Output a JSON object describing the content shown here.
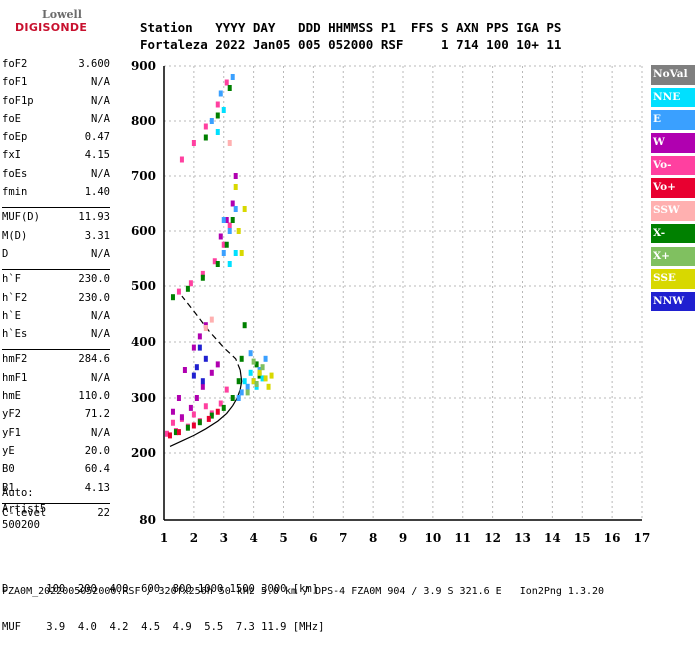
{
  "logo": {
    "line1": "Lowell",
    "line2": "DIGISONDE"
  },
  "header": {
    "line1": "Station   YYYY DAY   DDD HHMMSS P1  FFS S AXN PPS IGA PS",
    "line2": "Fortaleza 2022 Jan05 005 052000 RSF     1 714 100 10+ 11"
  },
  "params": {
    "group1": [
      {
        "label": "foF2",
        "value": "3.600"
      },
      {
        "label": "foF1",
        "value": "N/A"
      },
      {
        "label": "foF1p",
        "value": "N/A"
      },
      {
        "label": "foE",
        "value": "N/A"
      },
      {
        "label": "foEp",
        "value": "0.47"
      },
      {
        "label": "fxI",
        "value": "4.15"
      },
      {
        "label": "foEs",
        "value": "N/A"
      },
      {
        "label": "fmin",
        "value": "1.40"
      }
    ],
    "group2": [
      {
        "label": "MUF(D)",
        "value": "11.93"
      },
      {
        "label": "M(D)",
        "value": "3.31"
      },
      {
        "label": "D",
        "value": "N/A"
      }
    ],
    "group3": [
      {
        "label": "h`F",
        "value": "230.0"
      },
      {
        "label": "h`F2",
        "value": "230.0"
      },
      {
        "label": "h`E",
        "value": "N/A"
      },
      {
        "label": "h`Es",
        "value": "N/A"
      }
    ],
    "group4": [
      {
        "label": "hmF2",
        "value": "284.6"
      },
      {
        "label": "hmF1",
        "value": "N/A"
      },
      {
        "label": "hmE",
        "value": "110.0"
      },
      {
        "label": "yF2",
        "value": "71.2"
      },
      {
        "label": "yF1",
        "value": "N/A"
      },
      {
        "label": "yE",
        "value": "20.0"
      },
      {
        "label": "B0",
        "value": "60.4"
      },
      {
        "label": "B1",
        "value": "4.13"
      }
    ],
    "group5": [
      {
        "label": "C-level",
        "value": "22"
      }
    ]
  },
  "auto": {
    "line1": "Auto:",
    "line2": "Artist5",
    "line3": "500200"
  },
  "legend": [
    {
      "label": "NoVal",
      "color": "#7f7f7f"
    },
    {
      "label": "NNE",
      "color": "#00e0ff"
    },
    {
      "label": "E",
      "color": "#3aa0ff"
    },
    {
      "label": "W",
      "color": "#b000b0"
    },
    {
      "label": "Vo-",
      "color": "#ff40a0"
    },
    {
      "label": "Vo+",
      "color": "#e80030"
    },
    {
      "label": "SSW",
      "color": "#ffb0b0"
    },
    {
      "label": "X-",
      "color": "#008000"
    },
    {
      "label": "X+",
      "color": "#80c060"
    },
    {
      "label": "SSE",
      "color": "#d8d800"
    },
    {
      "label": "NNW",
      "color": "#2020d0"
    }
  ],
  "bottom": {
    "line1": "D      100  200  400  600  800 1000 1500 3000 [km]",
    "line2": "MUF    3.9  4.0  4.2  4.5  4.9  5.5  7.3 11.9 [MHz]"
  },
  "footer": "FZA0M_2022005052000.RSF / 320fx256h 50 kHz 5.0 km / DPS-4 FZA0M 904 / 3.9 S 321.6 E   Ion2Png 1.3.20",
  "chart_data": {
    "type": "scatter",
    "xlabel": "",
    "ylabel": "",
    "xlim": [
      1,
      17
    ],
    "ylim": [
      80,
      900
    ],
    "xticks": [
      "1",
      "2",
      "3",
      "4",
      "5",
      "6",
      "7",
      "8",
      "9",
      "10",
      "11",
      "12",
      "13",
      "14",
      "15",
      "16",
      "17"
    ],
    "yticks": [
      "80",
      "200",
      "300",
      "400",
      "500",
      "600",
      "700",
      "800",
      "900"
    ],
    "grid": true,
    "series": [
      {
        "name": "Vo-",
        "color": "#ff40a0",
        "points": [
          [
            1.1,
            235
          ],
          [
            1.4,
            240
          ],
          [
            1.8,
            248
          ],
          [
            2.2,
            258
          ],
          [
            2.6,
            272
          ],
          [
            2.9,
            290
          ],
          [
            3.1,
            315
          ],
          [
            1.5,
            490
          ],
          [
            1.9,
            505
          ],
          [
            2.3,
            522
          ],
          [
            2.7,
            545
          ],
          [
            3.0,
            575
          ],
          [
            3.2,
            610
          ],
          [
            1.6,
            730
          ],
          [
            2.0,
            760
          ],
          [
            2.4,
            790
          ],
          [
            2.8,
            830
          ],
          [
            3.1,
            870
          ],
          [
            1.3,
            255
          ],
          [
            1.6,
            262
          ],
          [
            2.0,
            270
          ],
          [
            2.4,
            285
          ]
        ]
      },
      {
        "name": "X-",
        "color": "#008000",
        "points": [
          [
            1.4,
            238
          ],
          [
            1.8,
            246
          ],
          [
            2.2,
            256
          ],
          [
            2.6,
            268
          ],
          [
            3.0,
            282
          ],
          [
            3.3,
            300
          ],
          [
            3.5,
            330
          ],
          [
            3.6,
            370
          ],
          [
            3.7,
            430
          ],
          [
            1.3,
            480
          ],
          [
            1.8,
            495
          ],
          [
            2.3,
            515
          ],
          [
            2.8,
            540
          ],
          [
            3.1,
            575
          ],
          [
            3.3,
            620
          ],
          [
            2.4,
            770
          ],
          [
            2.8,
            810
          ],
          [
            3.2,
            860
          ],
          [
            4.1,
            360
          ],
          [
            4.2,
            340
          ]
        ]
      },
      {
        "name": "W",
        "color": "#b000b0",
        "points": [
          [
            1.3,
            275
          ],
          [
            1.6,
            265
          ],
          [
            1.9,
            282
          ],
          [
            2.1,
            300
          ],
          [
            2.3,
            320
          ],
          [
            2.6,
            345
          ],
          [
            2.8,
            360
          ],
          [
            2.0,
            390
          ],
          [
            2.2,
            410
          ],
          [
            2.4,
            430
          ],
          [
            1.7,
            350
          ],
          [
            1.5,
            300
          ],
          [
            3.3,
            650
          ],
          [
            3.1,
            620
          ],
          [
            2.9,
            590
          ],
          [
            3.4,
            700
          ]
        ]
      },
      {
        "name": "E",
        "color": "#3aa0ff",
        "points": [
          [
            3.6,
            310
          ],
          [
            3.8,
            320
          ],
          [
            4.0,
            330
          ],
          [
            4.2,
            350
          ],
          [
            4.4,
            370
          ],
          [
            3.5,
            300
          ],
          [
            3.9,
            380
          ],
          [
            3.2,
            600
          ],
          [
            3.4,
            640
          ],
          [
            3.0,
            560
          ],
          [
            2.6,
            800
          ],
          [
            2.9,
            850
          ],
          [
            3.3,
            880
          ],
          [
            3.0,
            620
          ]
        ]
      },
      {
        "name": "NNE",
        "color": "#00e0ff",
        "points": [
          [
            3.7,
            330
          ],
          [
            3.9,
            345
          ],
          [
            4.1,
            320
          ],
          [
            4.3,
            335
          ],
          [
            3.4,
            560
          ],
          [
            3.2,
            540
          ],
          [
            2.8,
            780
          ],
          [
            3.0,
            820
          ]
        ]
      },
      {
        "name": "SSE",
        "color": "#d8d800",
        "points": [
          [
            4.0,
            330
          ],
          [
            4.2,
            345
          ],
          [
            4.4,
            335
          ],
          [
            4.6,
            340
          ],
          [
            4.5,
            320
          ],
          [
            3.5,
            600
          ],
          [
            3.6,
            560
          ],
          [
            3.7,
            640
          ],
          [
            3.4,
            680
          ]
        ]
      },
      {
        "name": "X+",
        "color": "#80c060",
        "points": [
          [
            4.1,
            325
          ],
          [
            4.3,
            355
          ],
          [
            3.8,
            310
          ],
          [
            4.0,
            365
          ]
        ]
      },
      {
        "name": "NNW",
        "color": "#2020d0",
        "points": [
          [
            2.0,
            340
          ],
          [
            2.1,
            355
          ],
          [
            2.3,
            330
          ],
          [
            2.2,
            390
          ],
          [
            2.4,
            370
          ]
        ]
      },
      {
        "name": "Vo+",
        "color": "#e80030",
        "points": [
          [
            1.2,
            232
          ],
          [
            1.5,
            238
          ],
          [
            2.0,
            250
          ],
          [
            2.5,
            262
          ],
          [
            2.8,
            275
          ]
        ]
      },
      {
        "name": "SSW",
        "color": "#ffb0b0",
        "points": [
          [
            2.4,
            425
          ],
          [
            2.6,
            440
          ],
          [
            3.2,
            760
          ]
        ]
      }
    ],
    "profile": [
      [
        1.2,
        212
      ],
      [
        1.6,
        222
      ],
      [
        2.0,
        232
      ],
      [
        2.4,
        244
      ],
      [
        2.8,
        258
      ],
      [
        3.1,
        272
      ],
      [
        3.3,
        286
      ],
      [
        3.45,
        300
      ],
      [
        3.55,
        315
      ],
      [
        3.6,
        330
      ],
      [
        3.55,
        350
      ],
      [
        3.4,
        370
      ],
      [
        3.0,
        390
      ],
      [
        2.5,
        420
      ],
      [
        2.0,
        455
      ],
      [
        1.6,
        482
      ]
    ]
  }
}
